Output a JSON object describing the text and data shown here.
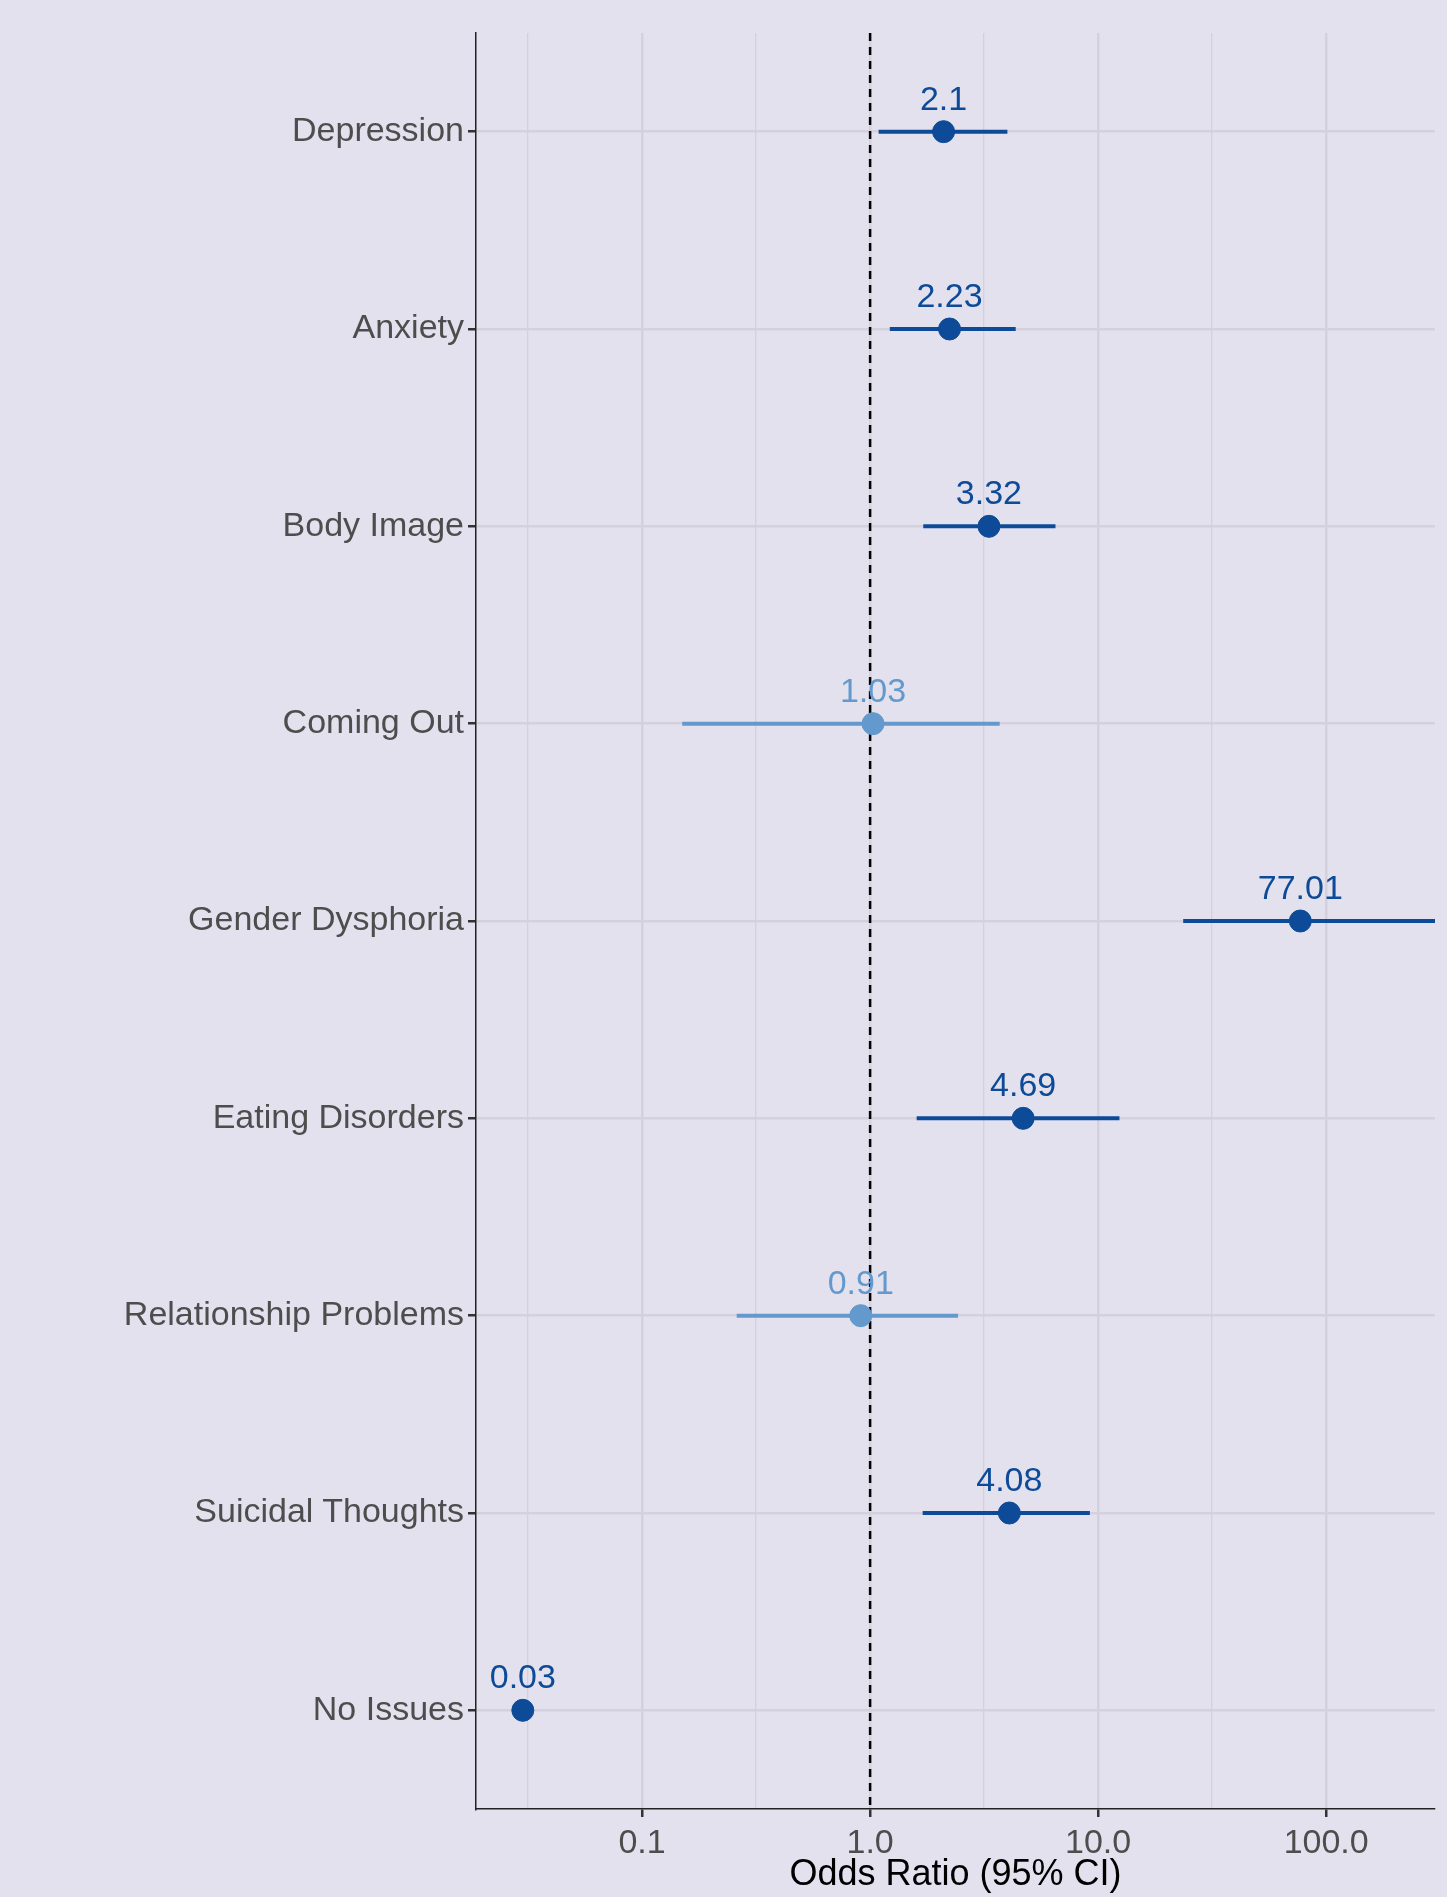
{
  "chart_data": {
    "type": "scatter",
    "orientation": "horizontal",
    "xlabel": "Odds Ratio (95% CI)",
    "categories": [
      "Depression",
      "Anxiety",
      "Body Image",
      "Coming Out",
      "Gender Dysphoria",
      "Eating Disorders",
      "Relationship Problems",
      "Suicidal Thoughts",
      "No Issues"
    ],
    "values": [
      2.1,
      2.23,
      3.32,
      1.03,
      77.01,
      4.69,
      0.91,
      4.08,
      0.03
    ],
    "errors": [
      [
        1.09,
        4.0
      ],
      [
        1.22,
        4.35
      ],
      [
        1.71,
        6.5
      ],
      [
        0.15,
        3.7
      ],
      [
        23.6,
        300
      ],
      [
        1.6,
        12.4
      ],
      [
        0.26,
        2.43
      ],
      [
        1.7,
        9.2
      ],
      null
    ],
    "colors": [
      "#0d4a97",
      "#0d4a97",
      "#0d4a97",
      "#6399cc",
      "#0d4a97",
      "#0d4a97",
      "#6399cc",
      "#0d4a97",
      "#0d4a97"
    ],
    "data_labels": true,
    "marker": "circle",
    "log": "x",
    "grid": true,
    "legend": false,
    "xlim": [
      0.0187,
      300
    ],
    "xticks": [
      {
        "value": 0.0316,
        "label": null
      },
      {
        "value": 0.1,
        "label": "0.1"
      },
      {
        "value": 0.316,
        "label": null
      },
      {
        "value": 1,
        "label": "1.0"
      },
      {
        "value": 3.16,
        "label": null
      },
      {
        "value": 10,
        "label": "10.0"
      },
      {
        "value": 31.6,
        "label": null
      },
      {
        "value": 100,
        "label": "100.0"
      }
    ],
    "ref_lines": [
      {
        "axis": "x",
        "value": 1,
        "color": "#000000",
        "line_style": "dashed"
      }
    ]
  }
}
